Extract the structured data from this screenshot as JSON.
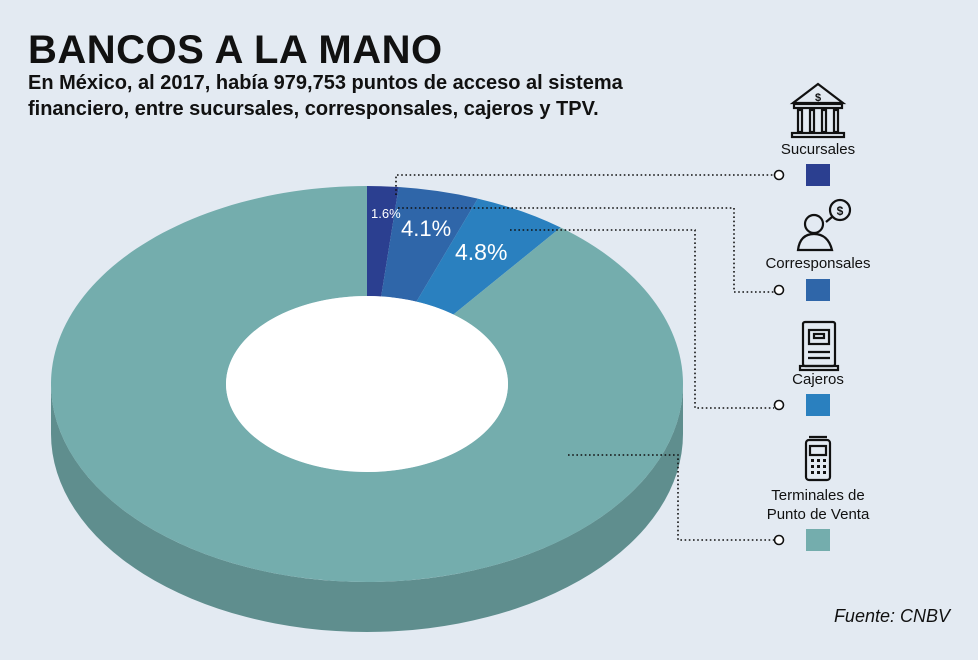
{
  "title": "BANCOS A LA MANO",
  "subtitle": "En México, al 2017, había 979,753 puntos de acceso al sistema financiero, entre sucursales, corresponsales, cajeros y TPV.",
  "source": "Fuente:  CNBV",
  "chart_data": {
    "type": "pie",
    "categories": [
      "Sucursales",
      "Corresponsales",
      "Cajeros",
      "Terminales de Punto de Venta"
    ],
    "values": [
      1.6,
      4.1,
      4.8,
      89.5
    ],
    "data_labels": [
      "1.6%",
      "4.1%",
      "4.8%",
      ""
    ],
    "legend_lines": [
      [
        "Sucursales"
      ],
      [
        "Corresponsales"
      ],
      [
        "Cajeros"
      ],
      [
        "Terminales de",
        "Punto de Venta"
      ]
    ],
    "legend_icons": [
      "bank-icon",
      "person-dollar-icon",
      "atm-icon",
      "pos-terminal-icon"
    ],
    "colors": [
      "#2b3f90",
      "#2f66a9",
      "#2a80bf",
      "#74adad"
    ],
    "donut": true,
    "legend_position": "right"
  }
}
